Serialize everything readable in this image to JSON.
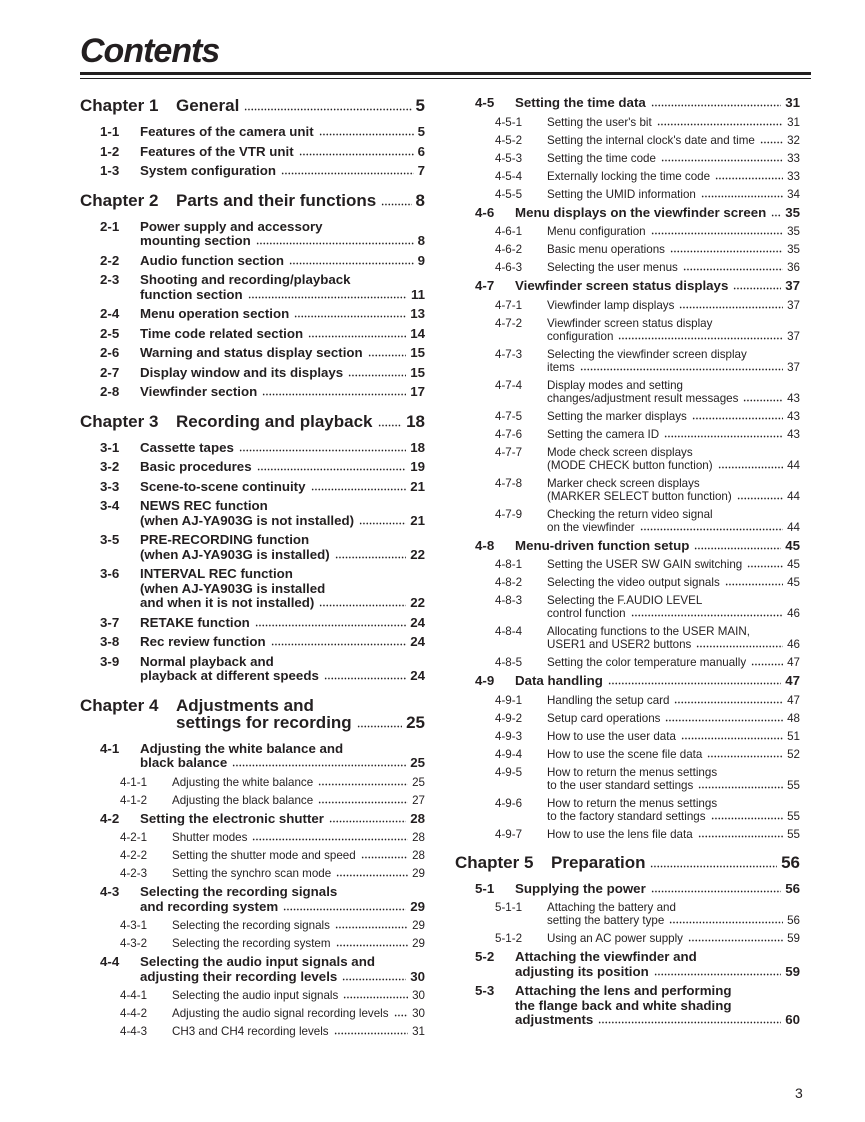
{
  "page_title": "Contents",
  "page_number": "3",
  "columns": {
    "left": [
      {
        "level": "chapter",
        "num": "Chapter 1",
        "lines": [
          "General"
        ],
        "page": "5"
      },
      {
        "level": "section",
        "num": "1-1",
        "lines": [
          "Features of the camera unit"
        ],
        "page": "5"
      },
      {
        "level": "section",
        "num": "1-2",
        "lines": [
          "Features of the VTR unit"
        ],
        "page": "6"
      },
      {
        "level": "section",
        "num": "1-3",
        "lines": [
          "System configuration"
        ],
        "page": "7"
      },
      {
        "level": "chapter",
        "num": "Chapter 2",
        "lines": [
          "Parts and their functions"
        ],
        "page": "8"
      },
      {
        "level": "section",
        "num": "2-1",
        "lines": [
          "Power supply and accessory",
          "mounting section"
        ],
        "page": "8"
      },
      {
        "level": "section",
        "num": "2-2",
        "lines": [
          "Audio function section"
        ],
        "page": "9"
      },
      {
        "level": "section",
        "num": "2-3",
        "lines": [
          "Shooting and recording/playback",
          "function section"
        ],
        "page": "11"
      },
      {
        "level": "section",
        "num": "2-4",
        "lines": [
          "Menu operation section"
        ],
        "page": "13"
      },
      {
        "level": "section",
        "num": "2-5",
        "lines": [
          "Time code related section"
        ],
        "page": "14"
      },
      {
        "level": "section",
        "num": "2-6",
        "lines": [
          "Warning and status display section"
        ],
        "page": "15"
      },
      {
        "level": "section",
        "num": "2-7",
        "lines": [
          "Display window and its displays"
        ],
        "page": "15"
      },
      {
        "level": "section",
        "num": "2-8",
        "lines": [
          "Viewfinder section"
        ],
        "page": "17"
      },
      {
        "level": "chapter",
        "num": "Chapter 3",
        "lines": [
          "Recording and playback"
        ],
        "page": "18"
      },
      {
        "level": "section",
        "num": "3-1",
        "lines": [
          "Cassette tapes"
        ],
        "page": "18"
      },
      {
        "level": "section",
        "num": "3-2",
        "lines": [
          "Basic procedures"
        ],
        "page": "19"
      },
      {
        "level": "section",
        "num": "3-3",
        "lines": [
          "Scene-to-scene continuity"
        ],
        "page": "21"
      },
      {
        "level": "section",
        "num": "3-4",
        "lines": [
          "NEWS REC function",
          "(when AJ-YA903G is not installed)"
        ],
        "page": "21"
      },
      {
        "level": "section",
        "num": "3-5",
        "lines": [
          "PRE-RECORDING function",
          "(when AJ-YA903G is installed)"
        ],
        "page": "22"
      },
      {
        "level": "section",
        "num": "3-6",
        "lines": [
          "INTERVAL REC function",
          "(when AJ-YA903G is installed",
          "and when it is not installed)"
        ],
        "page": "22"
      },
      {
        "level": "section",
        "num": "3-7",
        "lines": [
          "RETAKE function"
        ],
        "page": "24"
      },
      {
        "level": "section",
        "num": "3-8",
        "lines": [
          "Rec review function"
        ],
        "page": "24"
      },
      {
        "level": "section",
        "num": "3-9",
        "lines": [
          "Normal playback and",
          "playback at different speeds"
        ],
        "page": "24"
      },
      {
        "level": "chapter",
        "num": "Chapter 4",
        "lines": [
          "Adjustments and",
          "settings for recording"
        ],
        "page": "25"
      },
      {
        "level": "section",
        "num": "4-1",
        "lines": [
          "Adjusting the white balance and",
          "black balance"
        ],
        "page": "25"
      },
      {
        "level": "sub",
        "num": "4-1-1",
        "lines": [
          "Adjusting the white balance"
        ],
        "page": "25"
      },
      {
        "level": "sub",
        "num": "4-1-2",
        "lines": [
          "Adjusting the black balance"
        ],
        "page": "27"
      },
      {
        "level": "section",
        "num": "4-2",
        "lines": [
          "Setting the electronic shutter"
        ],
        "page": "28"
      },
      {
        "level": "sub",
        "num": "4-2-1",
        "lines": [
          "Shutter modes"
        ],
        "page": "28"
      },
      {
        "level": "sub",
        "num": "4-2-2",
        "lines": [
          "Setting the shutter mode and speed"
        ],
        "page": "28"
      },
      {
        "level": "sub",
        "num": "4-2-3",
        "lines": [
          "Setting the synchro scan mode"
        ],
        "page": "29"
      },
      {
        "level": "section",
        "num": "4-3",
        "lines": [
          "Selecting the recording signals",
          "and recording system"
        ],
        "page": "29"
      },
      {
        "level": "sub",
        "num": "4-3-1",
        "lines": [
          "Selecting the recording signals"
        ],
        "page": "29"
      },
      {
        "level": "sub",
        "num": "4-3-2",
        "lines": [
          "Selecting the recording system"
        ],
        "page": "29"
      },
      {
        "level": "section",
        "num": "4-4",
        "lines": [
          "Selecting the audio input signals and",
          "adjusting their recording levels"
        ],
        "page": "30"
      },
      {
        "level": "sub",
        "num": "4-4-1",
        "lines": [
          "Selecting the audio input signals"
        ],
        "page": "30"
      },
      {
        "level": "sub",
        "num": "4-4-2",
        "lines": [
          "Adjusting the audio signal recording levels"
        ],
        "page": "30"
      },
      {
        "level": "sub",
        "num": "4-4-3",
        "lines": [
          "CH3 and CH4 recording levels"
        ],
        "page": "31"
      }
    ],
    "right": [
      {
        "level": "section",
        "num": "4-5",
        "lines": [
          "Setting the time data"
        ],
        "page": "31"
      },
      {
        "level": "sub",
        "num": "4-5-1",
        "lines": [
          "Setting the user's bit"
        ],
        "page": "31"
      },
      {
        "level": "sub",
        "num": "4-5-2",
        "lines": [
          "Setting the internal clock's date and time"
        ],
        "page": "32"
      },
      {
        "level": "sub",
        "num": "4-5-3",
        "lines": [
          "Setting the time code"
        ],
        "page": "33"
      },
      {
        "level": "sub",
        "num": "4-5-4",
        "lines": [
          "Externally locking the time code"
        ],
        "page": "33"
      },
      {
        "level": "sub",
        "num": "4-5-5",
        "lines": [
          "Setting the UMID information"
        ],
        "page": "34"
      },
      {
        "level": "section",
        "num": "4-6",
        "lines": [
          "Menu displays on the viewfinder screen"
        ],
        "page": "35"
      },
      {
        "level": "sub",
        "num": "4-6-1",
        "lines": [
          "Menu configuration"
        ],
        "page": "35"
      },
      {
        "level": "sub",
        "num": "4-6-2",
        "lines": [
          "Basic menu operations"
        ],
        "page": "35"
      },
      {
        "level": "sub",
        "num": "4-6-3",
        "lines": [
          "Selecting the user menus"
        ],
        "page": "36"
      },
      {
        "level": "section",
        "num": "4-7",
        "lines": [
          "Viewfinder screen status displays"
        ],
        "page": "37"
      },
      {
        "level": "sub",
        "num": "4-7-1",
        "lines": [
          "Viewfinder lamp displays"
        ],
        "page": "37"
      },
      {
        "level": "sub",
        "num": "4-7-2",
        "lines": [
          "Viewfinder screen status display",
          "configuration"
        ],
        "page": "37"
      },
      {
        "level": "sub",
        "num": "4-7-3",
        "lines": [
          "Selecting the viewfinder screen display",
          "items"
        ],
        "page": "37"
      },
      {
        "level": "sub",
        "num": "4-7-4",
        "lines": [
          "Display modes and setting",
          "changes/adjustment result messages"
        ],
        "page": "43"
      },
      {
        "level": "sub",
        "num": "4-7-5",
        "lines": [
          "Setting the marker displays"
        ],
        "page": "43"
      },
      {
        "level": "sub",
        "num": "4-7-6",
        "lines": [
          "Setting the camera ID"
        ],
        "page": "43"
      },
      {
        "level": "sub",
        "num": "4-7-7",
        "lines": [
          "Mode check screen displays",
          "(MODE CHECK button function)"
        ],
        "page": "44"
      },
      {
        "level": "sub",
        "num": "4-7-8",
        "lines": [
          "Marker check screen displays",
          "(MARKER SELECT button function)"
        ],
        "page": "44"
      },
      {
        "level": "sub",
        "num": "4-7-9",
        "lines": [
          "Checking the return video signal",
          "on the viewfinder"
        ],
        "page": "44"
      },
      {
        "level": "section",
        "num": "4-8",
        "lines": [
          "Menu-driven function setup"
        ],
        "page": "45"
      },
      {
        "level": "sub",
        "num": "4-8-1",
        "lines": [
          "Setting the USER SW GAIN switching"
        ],
        "page": "45"
      },
      {
        "level": "sub",
        "num": "4-8-2",
        "lines": [
          "Selecting the video output signals"
        ],
        "page": "45"
      },
      {
        "level": "sub",
        "num": "4-8-3",
        "lines": [
          "Selecting the F.AUDIO LEVEL",
          "control function"
        ],
        "page": "46"
      },
      {
        "level": "sub",
        "num": "4-8-4",
        "lines": [
          "Allocating functions to the USER MAIN,",
          "USER1 and USER2 buttons"
        ],
        "page": "46"
      },
      {
        "level": "sub",
        "num": "4-8-5",
        "lines": [
          "Setting the color temperature manually"
        ],
        "page": "47"
      },
      {
        "level": "section",
        "num": "4-9",
        "lines": [
          "Data handling"
        ],
        "page": "47"
      },
      {
        "level": "sub",
        "num": "4-9-1",
        "lines": [
          "Handling the setup card"
        ],
        "page": "47"
      },
      {
        "level": "sub",
        "num": "4-9-2",
        "lines": [
          "Setup card operations"
        ],
        "page": "48"
      },
      {
        "level": "sub",
        "num": "4-9-3",
        "lines": [
          "How to use the user data"
        ],
        "page": "51"
      },
      {
        "level": "sub",
        "num": "4-9-4",
        "lines": [
          "How to use the scene file data"
        ],
        "page": "52"
      },
      {
        "level": "sub",
        "num": "4-9-5",
        "lines": [
          "How to return the menus settings",
          "to the user standard settings"
        ],
        "page": "55"
      },
      {
        "level": "sub",
        "num": "4-9-6",
        "lines": [
          "How to return the menus settings",
          "to the factory standard settings"
        ],
        "page": "55"
      },
      {
        "level": "sub",
        "num": "4-9-7",
        "lines": [
          "How to use the lens file data"
        ],
        "page": "55"
      },
      {
        "level": "chapter",
        "num": "Chapter 5",
        "lines": [
          "Preparation"
        ],
        "page": "56"
      },
      {
        "level": "section",
        "num": "5-1",
        "lines": [
          "Supplying the power"
        ],
        "page": "56"
      },
      {
        "level": "sub",
        "num": "5-1-1",
        "lines": [
          "Attaching the battery and",
          "setting the battery type"
        ],
        "page": "56"
      },
      {
        "level": "sub",
        "num": "5-1-2",
        "lines": [
          "Using an AC power supply"
        ],
        "page": "59"
      },
      {
        "level": "section",
        "num": "5-2",
        "lines": [
          "Attaching the viewfinder and",
          "adjusting its position"
        ],
        "page": "59"
      },
      {
        "level": "section",
        "num": "5-3",
        "lines": [
          "Attaching the lens and performing",
          "the flange back and white shading",
          "adjustments"
        ],
        "page": "60"
      }
    ]
  }
}
